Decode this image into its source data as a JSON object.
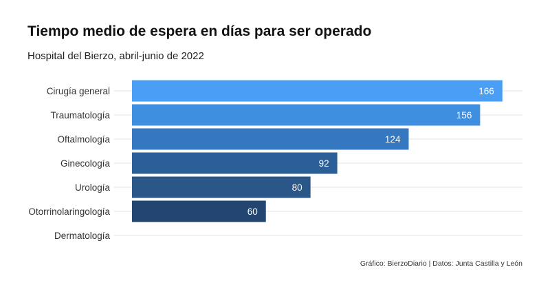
{
  "chart_data": {
    "type": "bar",
    "orientation": "horizontal",
    "title": "Tiempo medio de espera en días para ser operado",
    "subtitle": "Hospital del Bierzo, abril-junio de 2022",
    "caption": "Gráfico: BierzoDiario | Datos: Junta Castilla y León",
    "categories": [
      "Cirugía general",
      "Traumatología",
      "Oftalmología",
      "Ginecología",
      "Urología",
      "Otorrinolaringología",
      "Dermatología"
    ],
    "values": [
      166,
      156,
      124,
      92,
      80,
      60,
      0
    ],
    "data_labels": [
      "166",
      "156",
      "124",
      "92",
      "80",
      "60",
      ""
    ],
    "colors": [
      "#4a9ff5",
      "#3f8fe0",
      "#3578bf",
      "#2c5f98",
      "#2a5688",
      "#22466f",
      "#22466f"
    ],
    "xlim": [
      0,
      175
    ],
    "grid": true,
    "legend": "none"
  }
}
